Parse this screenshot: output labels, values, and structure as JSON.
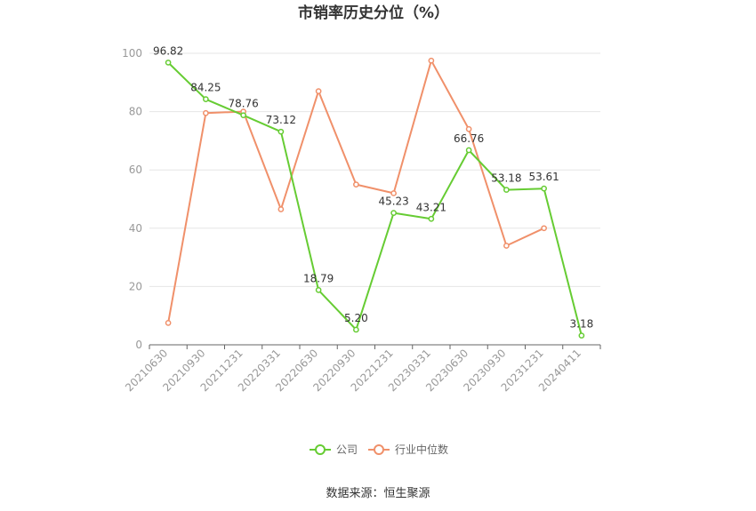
{
  "chart_data": {
    "type": "line",
    "title": "市销率历史分位（%）",
    "categories": [
      "20210630",
      "20210930",
      "20211231",
      "20220331",
      "20220630",
      "20220930",
      "20221231",
      "20230331",
      "20230630",
      "20230930",
      "20231231",
      "20240411"
    ],
    "ylim": [
      0,
      100
    ],
    "yticks": [
      0,
      20,
      40,
      60,
      80,
      100
    ],
    "grid": true,
    "legend_position": "bottom",
    "series": [
      {
        "name": "公司",
        "color": "#66cc33",
        "values": [
          96.82,
          84.25,
          78.76,
          73.12,
          18.79,
          5.2,
          45.23,
          43.21,
          66.76,
          53.18,
          53.61,
          3.18
        ],
        "labels": [
          "96.82",
          "84.25",
          "78.76",
          "73.12",
          "18.79",
          "5.20",
          "45.23",
          "43.21",
          "66.76",
          "53.18",
          "53.61",
          "3.18"
        ]
      },
      {
        "name": "行业中位数",
        "color": "#f0906a",
        "values": [
          7.5,
          79.5,
          80,
          46.5,
          87,
          55,
          52,
          97.5,
          74,
          34,
          40,
          null
        ]
      }
    ]
  },
  "footer": {
    "source": "数据来源：恒生聚源"
  }
}
